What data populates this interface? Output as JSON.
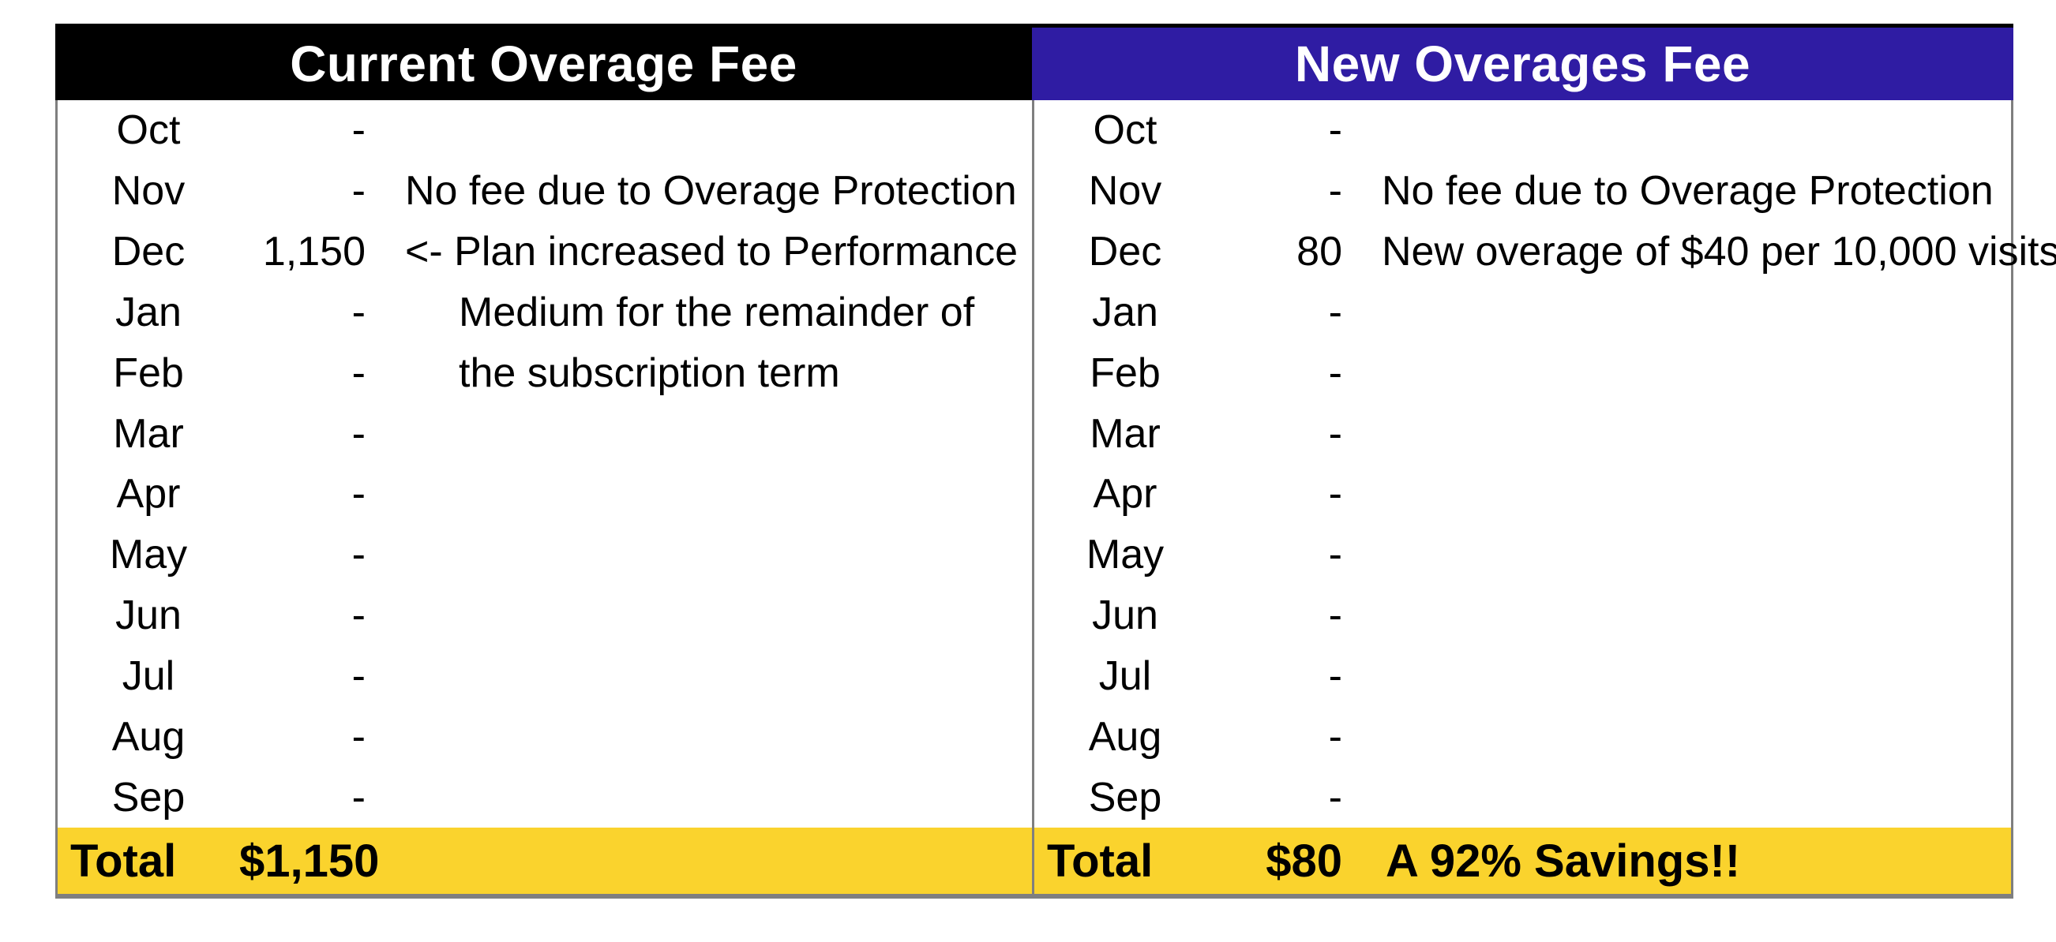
{
  "colors": {
    "left_header_bg": "#000000",
    "right_header_bg": "#2F1CA3",
    "header_text": "#FFFFFF",
    "total_row_bg": "#FAD32D",
    "border_gray": "#7F7F7F",
    "body_text": "#000000"
  },
  "tables": [
    {
      "title": "Current Overage Fee",
      "rows": [
        {
          "month": "Oct",
          "value": "-",
          "note": ""
        },
        {
          "month": "Nov",
          "value": "-",
          "note": "No fee due to Overage Protection"
        },
        {
          "month": "Dec",
          "value": "1,150",
          "note": "<- Plan increased to Performance"
        },
        {
          "month": "Jan",
          "value": "-",
          "note": "Medium for the remainder of"
        },
        {
          "month": "Feb",
          "value": "-",
          "note": "the subscription term"
        },
        {
          "month": "Mar",
          "value": "-",
          "note": ""
        },
        {
          "month": "Apr",
          "value": "-",
          "note": ""
        },
        {
          "month": "May",
          "value": "-",
          "note": ""
        },
        {
          "month": "Jun",
          "value": "-",
          "note": ""
        },
        {
          "month": "Jul",
          "value": "-",
          "note": ""
        },
        {
          "month": "Aug",
          "value": "-",
          "note": ""
        },
        {
          "month": "Sep",
          "value": "-",
          "note": ""
        }
      ],
      "total": {
        "label": "Total",
        "value": "$1,150",
        "note": ""
      }
    },
    {
      "title": "New Overages Fee",
      "rows": [
        {
          "month": "Oct",
          "value": "-",
          "note": ""
        },
        {
          "month": "Nov",
          "value": "-",
          "note": "No fee due to Overage Protection"
        },
        {
          "month": "Dec",
          "value": "80",
          "note": "New overage of $40 per 10,000 visits"
        },
        {
          "month": "Jan",
          "value": "-",
          "note": ""
        },
        {
          "month": "Feb",
          "value": "-",
          "note": ""
        },
        {
          "month": "Mar",
          "value": "-",
          "note": ""
        },
        {
          "month": "Apr",
          "value": "-",
          "note": ""
        },
        {
          "month": "May",
          "value": "-",
          "note": ""
        },
        {
          "month": "Jun",
          "value": "-",
          "note": ""
        },
        {
          "month": "Jul",
          "value": "-",
          "note": ""
        },
        {
          "month": "Aug",
          "value": "-",
          "note": ""
        },
        {
          "month": "Sep",
          "value": "-",
          "note": ""
        }
      ],
      "total": {
        "label": "Total",
        "value": "$80",
        "note": "A 92% Savings!!"
      }
    }
  ]
}
